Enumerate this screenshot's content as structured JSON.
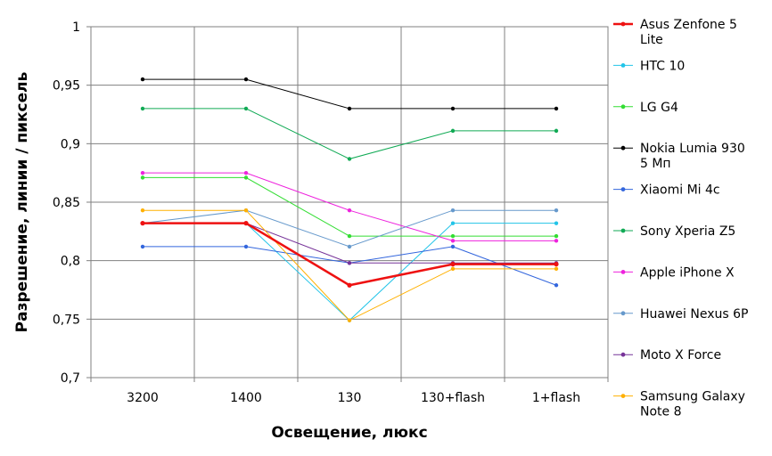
{
  "chart_data": {
    "type": "line",
    "title": "",
    "xlabel": "Освещение, люкс",
    "ylabel": "Разрешение, линии / пиксель",
    "categories": [
      "3200",
      "1400",
      "130",
      "130+flash",
      "1+flash"
    ],
    "ylim": [
      0.7,
      1
    ],
    "ytick_values": [
      0.7,
      0.75,
      0.8,
      0.85,
      0.9,
      0.95,
      1
    ],
    "ytick_labels": [
      "0,7",
      "0,75",
      "0,8",
      "0,85",
      "0,9",
      "0,95",
      "1"
    ],
    "grid": true,
    "legend_position": "right",
    "series": [
      {
        "name": "Asus Zenfone 5 Lite",
        "color": "#ee1111",
        "values": [
          0.832,
          0.832,
          0.779,
          0.797,
          0.797
        ],
        "bold": true
      },
      {
        "name": "HTC 10",
        "color": "#22c4e8",
        "values": [
          0.832,
          0.832,
          0.749,
          0.832,
          0.832
        ]
      },
      {
        "name": "LG G4",
        "color": "#33dd33",
        "values": [
          0.871,
          0.871,
          0.821,
          0.821,
          0.821
        ]
      },
      {
        "name": "Nokia Lumia 930 5 Мп",
        "color": "#000000",
        "values": [
          0.955,
          0.955,
          0.93,
          0.93,
          0.93
        ]
      },
      {
        "name": "Xiaomi Mi 4c",
        "color": "#3366dd",
        "values": [
          0.812,
          0.812,
          0.798,
          0.812,
          0.779
        ]
      },
      {
        "name": "Sony Xperia Z5",
        "color": "#11aa55",
        "values": [
          0.93,
          0.93,
          0.887,
          0.911,
          0.911
        ]
      },
      {
        "name": "Apple iPhone X",
        "color": "#ee22dd",
        "values": [
          0.875,
          0.875,
          0.843,
          0.817,
          0.817
        ]
      },
      {
        "name": "Huawei Nexus 6P",
        "color": "#6699cc",
        "values": [
          0.832,
          0.843,
          0.812,
          0.843,
          0.843
        ]
      },
      {
        "name": "Moto X Force",
        "color": "#773399",
        "values": [
          0.832,
          0.832,
          0.798,
          0.798,
          0.798
        ]
      },
      {
        "name": "Samsung Galaxy Note 8",
        "color": "#ffb000",
        "values": [
          0.843,
          0.843,
          0.749,
          0.793,
          0.793
        ]
      }
    ],
    "legend": {
      "items": [
        {
          "lines": [
            "Asus Zenfone 5",
            "Lite"
          ]
        },
        {
          "lines": [
            "HTC 10"
          ]
        },
        {
          "lines": [
            "LG G4"
          ]
        },
        {
          "lines": [
            "Nokia Lumia 930",
            "5 Мп"
          ]
        },
        {
          "lines": [
            "Xiaomi Mi 4c"
          ]
        },
        {
          "lines": [
            "Sony Xperia Z5"
          ]
        },
        {
          "lines": [
            "Apple iPhone X"
          ]
        },
        {
          "lines": [
            "Huawei Nexus 6P"
          ]
        },
        {
          "lines": [
            "Moto X Force"
          ]
        },
        {
          "lines": [
            "Samsung Galaxy",
            "Note 8"
          ]
        }
      ]
    }
  }
}
